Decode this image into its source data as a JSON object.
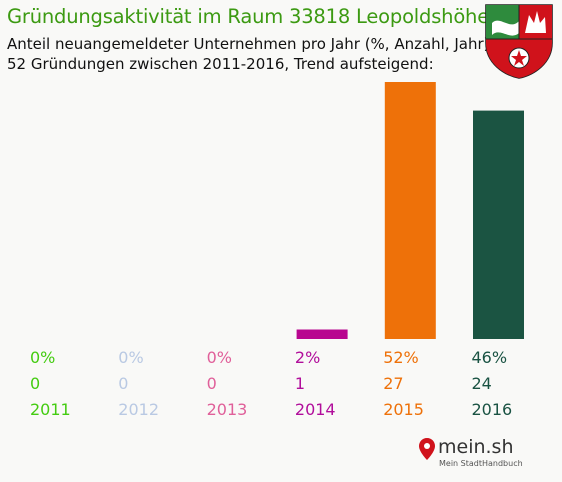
{
  "title": "Gründungsaktivität im Raum 33818 Leopoldshöhe",
  "subtitle_line1": "Anteil neuangemeldeter Unternehmen pro Jahr (%, Anzahl, Jahr)",
  "subtitle_line2": "52 Gründungen zwischen 2011-2016, Trend aufsteigend:",
  "crest_icon": "nrw-coat-of-arms-icon",
  "logo": {
    "name": "mein.sh",
    "tagline": "Mein StadtHandbuch",
    "icon": "map-pin-icon"
  },
  "chart_data": {
    "type": "bar",
    "categories": [
      "2011",
      "2012",
      "2013",
      "2014",
      "2015",
      "2016"
    ],
    "percent_labels": [
      "0%",
      "0%",
      "0%",
      "2%",
      "52%",
      "46%"
    ],
    "values": [
      0,
      0,
      0,
      1,
      27,
      24
    ],
    "colors": [
      "#44cc11",
      "#b9c9e3",
      "#e0609a",
      "#b10e9b",
      "#ee7109",
      "#1a5343"
    ],
    "bar_colors": [
      "#44cc11",
      "#b9c9e3",
      "#e0609a",
      "#b8068f",
      "#ee7109",
      "#1b5442"
    ],
    "grid": false,
    "legend": "none"
  }
}
